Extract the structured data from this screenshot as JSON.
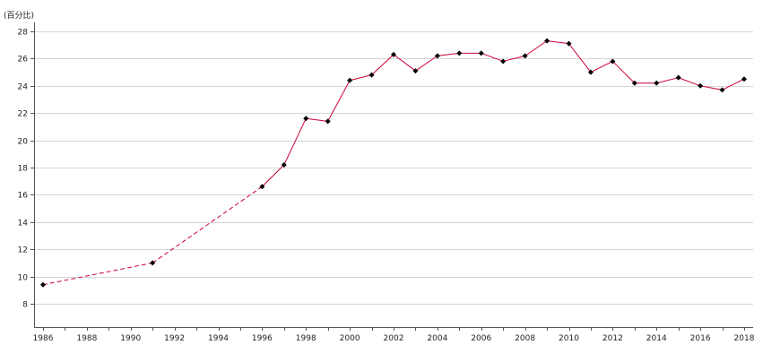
{
  "colors": {
    "line": "#cc0033",
    "marker": "#000000",
    "grid": "#d6d6d6",
    "axis": "#555555"
  },
  "chart_data": {
    "type": "line",
    "ylabel": "(百分比)",
    "xlim": [
      1986,
      2018
    ],
    "ylim": [
      6.5,
      28
    ],
    "x_ticks": [
      1986,
      1988,
      1990,
      1992,
      1994,
      1996,
      1998,
      2000,
      2002,
      2004,
      2006,
      2008,
      2010,
      2012,
      2014,
      2016,
      2018
    ],
    "y_ticks": [
      8,
      10,
      12,
      14,
      16,
      18,
      20,
      22,
      24,
      26,
      28
    ],
    "grid": true,
    "series": [
      {
        "x": [
          1986,
          1991,
          1996,
          1997,
          1998,
          1999,
          2000,
          2001,
          2002,
          2003,
          2004,
          2005,
          2006,
          2007,
          2008,
          2009,
          2010,
          2011,
          2012,
          2013,
          2014,
          2015,
          2016,
          2017,
          2018
        ],
        "values": [
          9.4,
          11.0,
          16.6,
          18.2,
          21.6,
          21.4,
          24.4,
          24.8,
          26.3,
          25.1,
          26.2,
          26.4,
          26.4,
          25.8,
          26.2,
          27.3,
          27.1,
          25.0,
          25.8,
          24.2,
          24.2,
          24.6,
          24.0,
          23.7,
          24.5
        ],
        "dashed_segments_until": 1996
      }
    ]
  }
}
